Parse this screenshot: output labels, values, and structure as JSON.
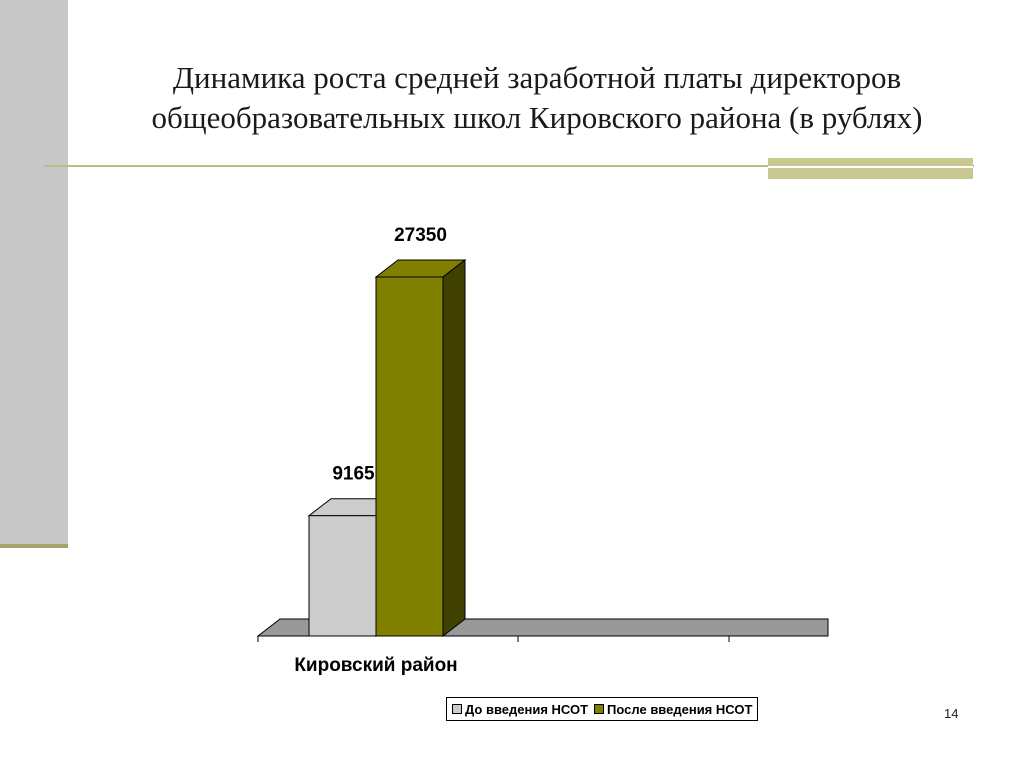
{
  "title_lines": [
    "Динамика роста средней заработной платы директоров",
    "общеобразовательных школ Кировского района (в рублях)"
  ],
  "page_number": "14",
  "chart_data": {
    "type": "bar",
    "categories": [
      "Кировский район"
    ],
    "series": [
      {
        "name": "До введения НСОТ",
        "values": [
          9165
        ],
        "color": "#cccccc",
        "side_color": "#7f7f7f"
      },
      {
        "name": "После введения НСОТ",
        "values": [
          27350
        ],
        "color": "#808000",
        "side_color": "#404000"
      }
    ],
    "value_labels": [
      "9165",
      "27350"
    ],
    "ylim": [
      0,
      27350
    ],
    "legend_position": "bottom",
    "grid": false,
    "floor_color": "#999999"
  }
}
